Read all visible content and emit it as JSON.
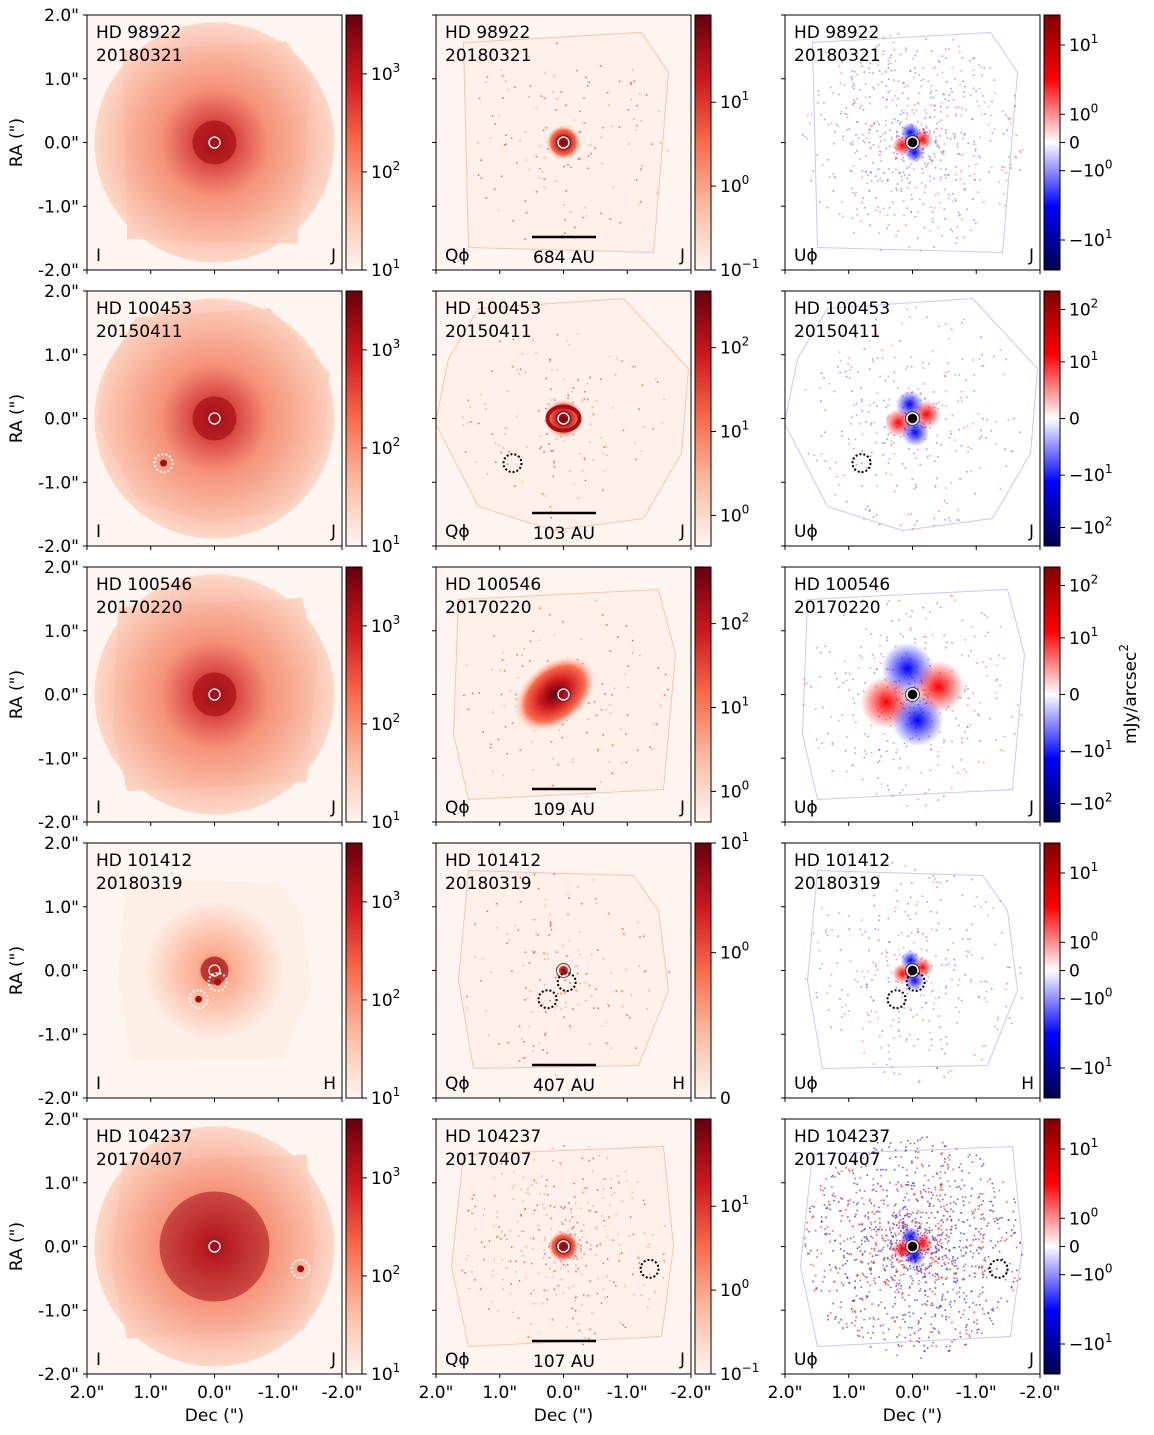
{
  "chart_data": {
    "type": "heatmap",
    "title": "",
    "xlabel": "Dec (\")",
    "ylabel": "RA (\")",
    "colorbar_label": "mJy/arcsec",
    "colorbar_label_sup": "2",
    "x_ticks": [
      "2.0\"",
      "1.0\"",
      "0.0\"",
      "-1.0\"",
      "-2.0\""
    ],
    "y_ticks": [
      "2.0\"",
      "1.0\"",
      "0.0\"",
      "-1.0\"",
      "-2.0\""
    ],
    "xlim": [
      2.0,
      -2.0
    ],
    "ylim": [
      -2.0,
      2.0
    ],
    "columns": [
      {
        "label": "I",
        "colormap": "Reds",
        "scale": "log"
      },
      {
        "label": "Qϕ",
        "colormap": "Reds",
        "scale": "log"
      },
      {
        "label": "Uϕ",
        "colormap": "seismic",
        "scale": "symlog"
      }
    ],
    "rows": [
      {
        "target": "HD 98922",
        "date": "20180321",
        "band": "J",
        "scale_bar": "684 AU",
        "companions": [],
        "cbars": [
          {
            "min": 10,
            "ticks": [
              "10",
              "10",
              "10"
            ],
            "exps": [
              "1",
              "2",
              "3"
            ],
            "vals": [
              10,
              100,
              1000
            ]
          },
          {
            "min": 0.1,
            "ticks": [
              "10",
              "10",
              "10"
            ],
            "exps": [
              "−1",
              "0",
              "1"
            ],
            "vals": [
              0.1,
              1,
              10
            ]
          },
          {
            "ticks": [
              "10",
              "10",
              "0",
              "−10",
              "−10"
            ],
            "exps": [
              "1",
              "0",
              "",
              "0",
              "1"
            ],
            "vals": [
              10,
              1,
              0,
              -1,
              -10
            ]
          }
        ]
      },
      {
        "target": "HD 100453",
        "date": "20150411",
        "band": "J",
        "scale_bar": "103 AU",
        "companions": [
          [
            0.8,
            -0.7
          ]
        ],
        "cbars": [
          {
            "ticks": [
              "10",
              "10",
              "10"
            ],
            "exps": [
              "1",
              "2",
              "3"
            ],
            "vals": [
              10,
              100,
              1000
            ]
          },
          {
            "ticks": [
              "10",
              "10",
              "10"
            ],
            "exps": [
              "0",
              "1",
              "2"
            ],
            "vals": [
              1,
              10,
              100
            ]
          },
          {
            "ticks": [
              "10",
              "10",
              "0",
              "−10",
              "−10"
            ],
            "exps": [
              "2",
              "1",
              "",
              "1",
              "2"
            ],
            "vals": [
              100,
              10,
              0,
              -10,
              -100
            ]
          }
        ]
      },
      {
        "target": "HD 100546",
        "date": "20170220",
        "band": "J",
        "scale_bar": "109 AU",
        "companions": [],
        "cbars": [
          {
            "ticks": [
              "10",
              "10",
              "10"
            ],
            "exps": [
              "1",
              "2",
              "3"
            ],
            "vals": [
              10,
              100,
              1000
            ]
          },
          {
            "ticks": [
              "10",
              "10",
              "10"
            ],
            "exps": [
              "0",
              "1",
              "2"
            ],
            "vals": [
              1,
              10,
              100
            ]
          },
          {
            "ticks": [
              "10",
              "10",
              "0",
              "−10",
              "−10"
            ],
            "exps": [
              "2",
              "1",
              "",
              "1",
              "2"
            ],
            "vals": [
              100,
              10,
              0,
              -10,
              -100
            ]
          }
        ]
      },
      {
        "target": "HD 101412",
        "date": "20180319",
        "band": "H",
        "scale_bar": "407 AU",
        "companions": [
          [
            0.25,
            -0.45
          ],
          [
            -0.05,
            -0.18
          ]
        ],
        "cbars": [
          {
            "ticks": [
              "10",
              "10",
              "10"
            ],
            "exps": [
              "1",
              "2",
              "3"
            ],
            "vals": [
              10,
              100,
              1000
            ]
          },
          {
            "ticks": [
              "0",
              "10",
              "10"
            ],
            "exps": [
              "",
              "0",
              "1"
            ],
            "vals": [
              0,
              1,
              10
            ]
          },
          {
            "ticks": [
              "10",
              "10",
              "0",
              "−10",
              "−10"
            ],
            "exps": [
              "1",
              "0",
              "",
              "0",
              "1"
            ],
            "vals": [
              10,
              1,
              0,
              -1,
              -10
            ]
          }
        ]
      },
      {
        "target": "HD 104237",
        "date": "20170407",
        "band": "J",
        "scale_bar": "107 AU",
        "companions": [
          [
            -1.35,
            -0.35
          ]
        ],
        "cbars": [
          {
            "ticks": [
              "10",
              "10",
              "10"
            ],
            "exps": [
              "1",
              "2",
              "3"
            ],
            "vals": [
              10,
              100,
              1000
            ]
          },
          {
            "ticks": [
              "10",
              "10",
              "10"
            ],
            "exps": [
              "−1",
              "0",
              "1"
            ],
            "vals": [
              0.1,
              1,
              10
            ]
          },
          {
            "ticks": [
              "10",
              "10",
              "0",
              "−10",
              "−10"
            ],
            "exps": [
              "1",
              "0",
              "",
              "0",
              "1"
            ],
            "vals": [
              10,
              1,
              0,
              -1,
              -10
            ]
          }
        ]
      }
    ]
  }
}
